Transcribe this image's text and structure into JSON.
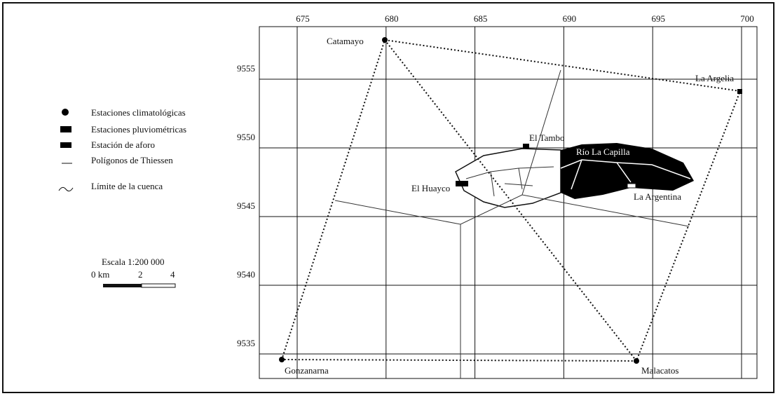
{
  "legend": [
    "Estaciones climatológicas",
    "Estaciones pluviométricas",
    "Estación de aforo",
    "Polígonos de Thiessen",
    "Límite de la cuenca"
  ],
  "scale": {
    "title": "Escala 1:200 000",
    "labels": [
      "0 km",
      "2",
      "4"
    ]
  },
  "x_ticks": [
    675,
    680,
    685,
    690,
    695,
    700
  ],
  "y_ticks": [
    9555,
    9550,
    9545,
    9540,
    9535
  ],
  "stations": [
    "Catamayo",
    "La Argelia",
    "El Tambo",
    "El Huayco",
    "La Argentina",
    "Gonzanarna",
    "Malacatos"
  ],
  "river": "Río La Capilla"
}
